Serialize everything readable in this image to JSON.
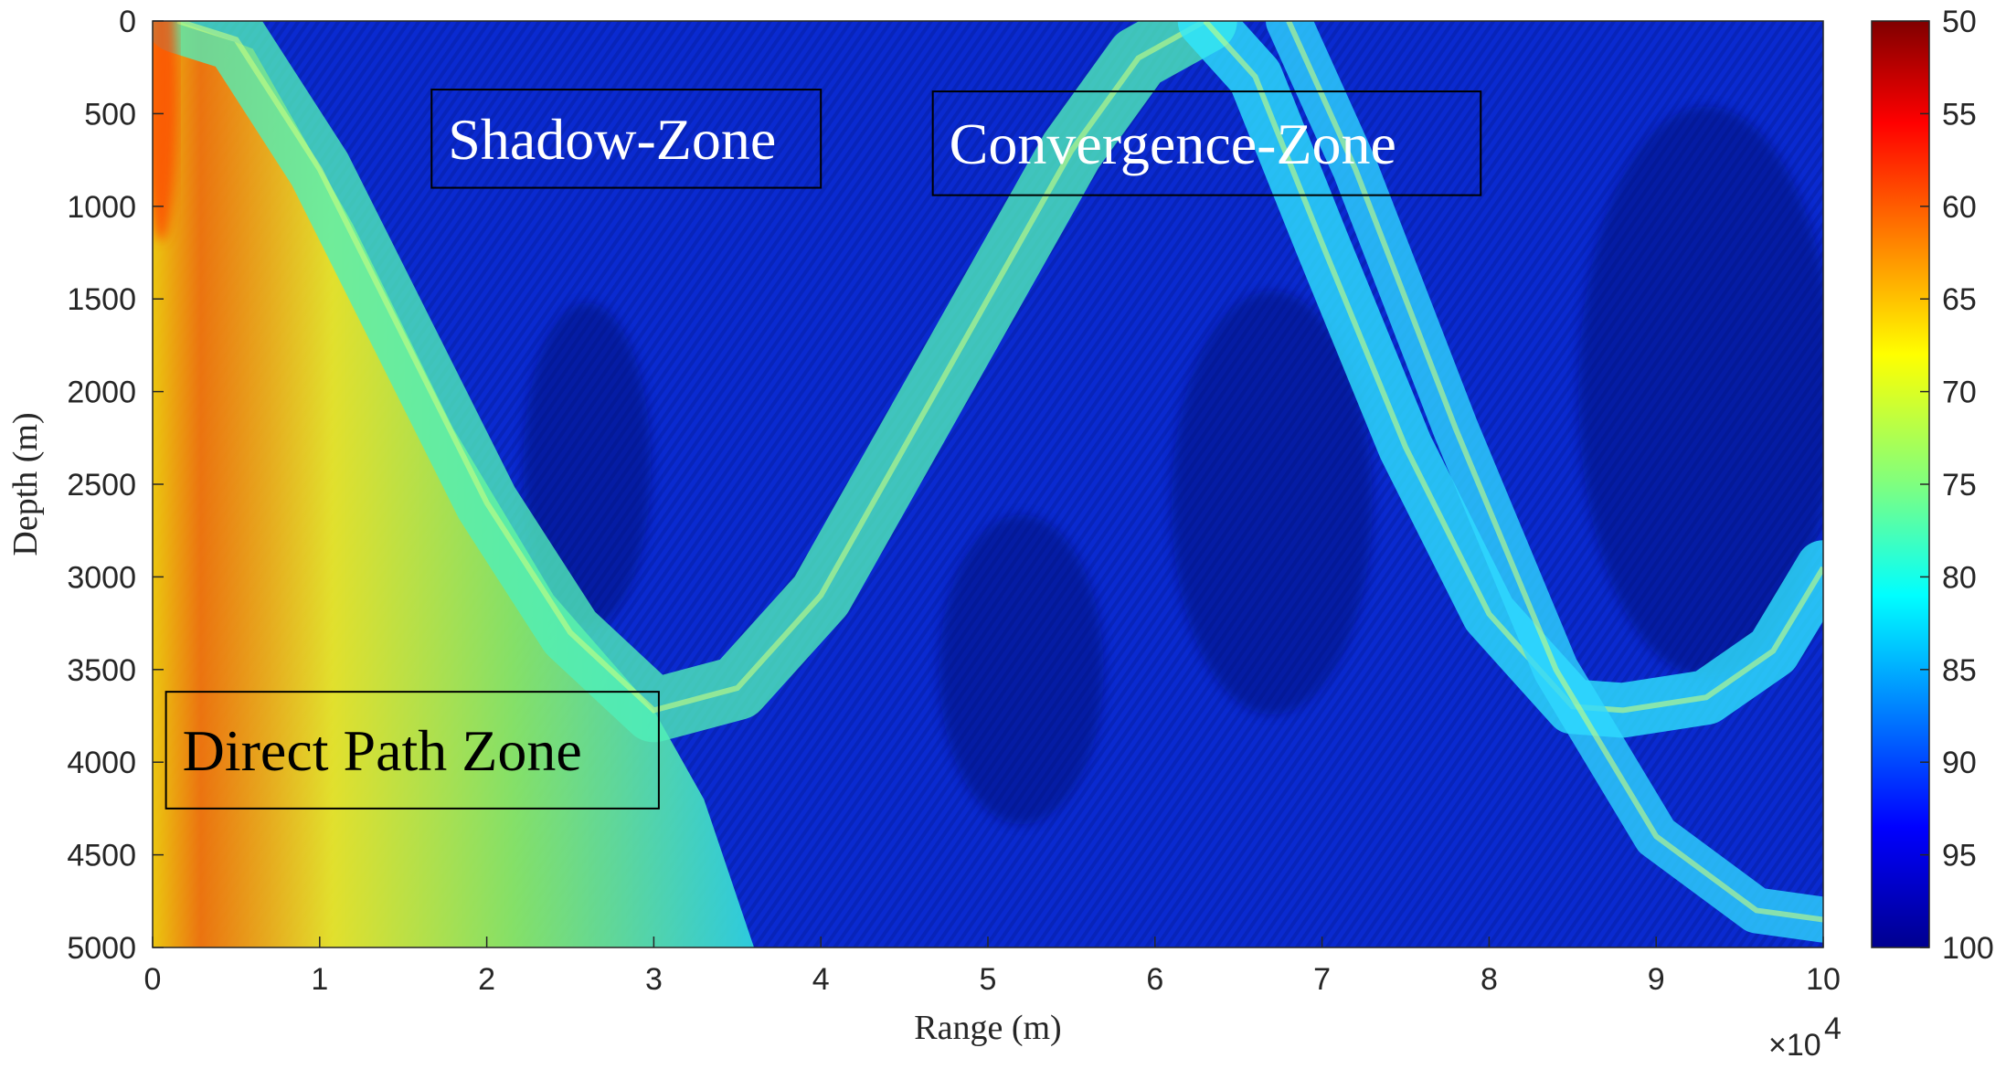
{
  "chart_data": {
    "type": "heatmap",
    "title": "",
    "xlabel": "Range (m)",
    "ylabel": "Depth (m)",
    "x_exponent_label": "×10",
    "x_exponent_power": "4",
    "xlim": [
      0,
      10
    ],
    "ylim": [
      0,
      5000
    ],
    "y_direction": "reversed",
    "x_ticks": [
      0,
      1,
      2,
      3,
      4,
      5,
      6,
      7,
      8,
      9,
      10
    ],
    "y_ticks": [
      0,
      500,
      1000,
      1500,
      2000,
      2500,
      3000,
      3500,
      4000,
      4500,
      5000
    ],
    "colormap": "jet-reversed",
    "colorbar": {
      "range": [
        50,
        100
      ],
      "ticks": [
        50,
        55,
        60,
        65,
        70,
        75,
        80,
        85,
        90,
        95,
        100
      ],
      "top_color": "#800000",
      "bottom_color": "#00008f"
    },
    "background_color": "#0a2ad0",
    "zones": [
      {
        "label": "Shadow-Zone",
        "text_color": "#ffffff",
        "x0": 1.67,
        "x1": 4.0,
        "y0": 370,
        "y1": 900
      },
      {
        "label": "Convergence-Zone",
        "text_color": "#ffffff",
        "x0": 4.67,
        "x1": 7.95,
        "y0": 380,
        "y1": 940
      },
      {
        "label": "Direct Path Zone",
        "text_color": "#000000",
        "x0": 0.08,
        "x1": 3.03,
        "y0": 3620,
        "y1": 4250
      }
    ],
    "ray_paths": [
      {
        "name": "direct-path-arc",
        "points": [
          [
            0.15,
            0
          ],
          [
            0.5,
            100
          ],
          [
            1,
            800
          ],
          [
            1.5,
            1700
          ],
          [
            2,
            2600
          ],
          [
            2.5,
            3300
          ],
          [
            3,
            3720
          ],
          [
            3.5,
            3600
          ],
          [
            4,
            3100
          ],
          [
            4.5,
            2300
          ],
          [
            5,
            1500
          ],
          [
            5.5,
            700
          ],
          [
            5.9,
            200
          ],
          [
            6.3,
            0
          ]
        ]
      },
      {
        "name": "second-arc",
        "points": [
          [
            6.3,
            0
          ],
          [
            6.6,
            300
          ],
          [
            7,
            1200
          ],
          [
            7.5,
            2300
          ],
          [
            8,
            3200
          ],
          [
            8.5,
            3700
          ],
          [
            8.8,
            3720
          ],
          [
            9.3,
            3650
          ],
          [
            9.7,
            3400
          ],
          [
            10,
            2950
          ]
        ]
      },
      {
        "name": "bottom-reflected-arc",
        "points": [
          [
            6.8,
            0
          ],
          [
            7.2,
            800
          ],
          [
            7.8,
            2200
          ],
          [
            8.4,
            3500
          ],
          [
            9,
            4400
          ],
          [
            9.6,
            4800
          ],
          [
            10,
            4850
          ]
        ]
      }
    ]
  }
}
